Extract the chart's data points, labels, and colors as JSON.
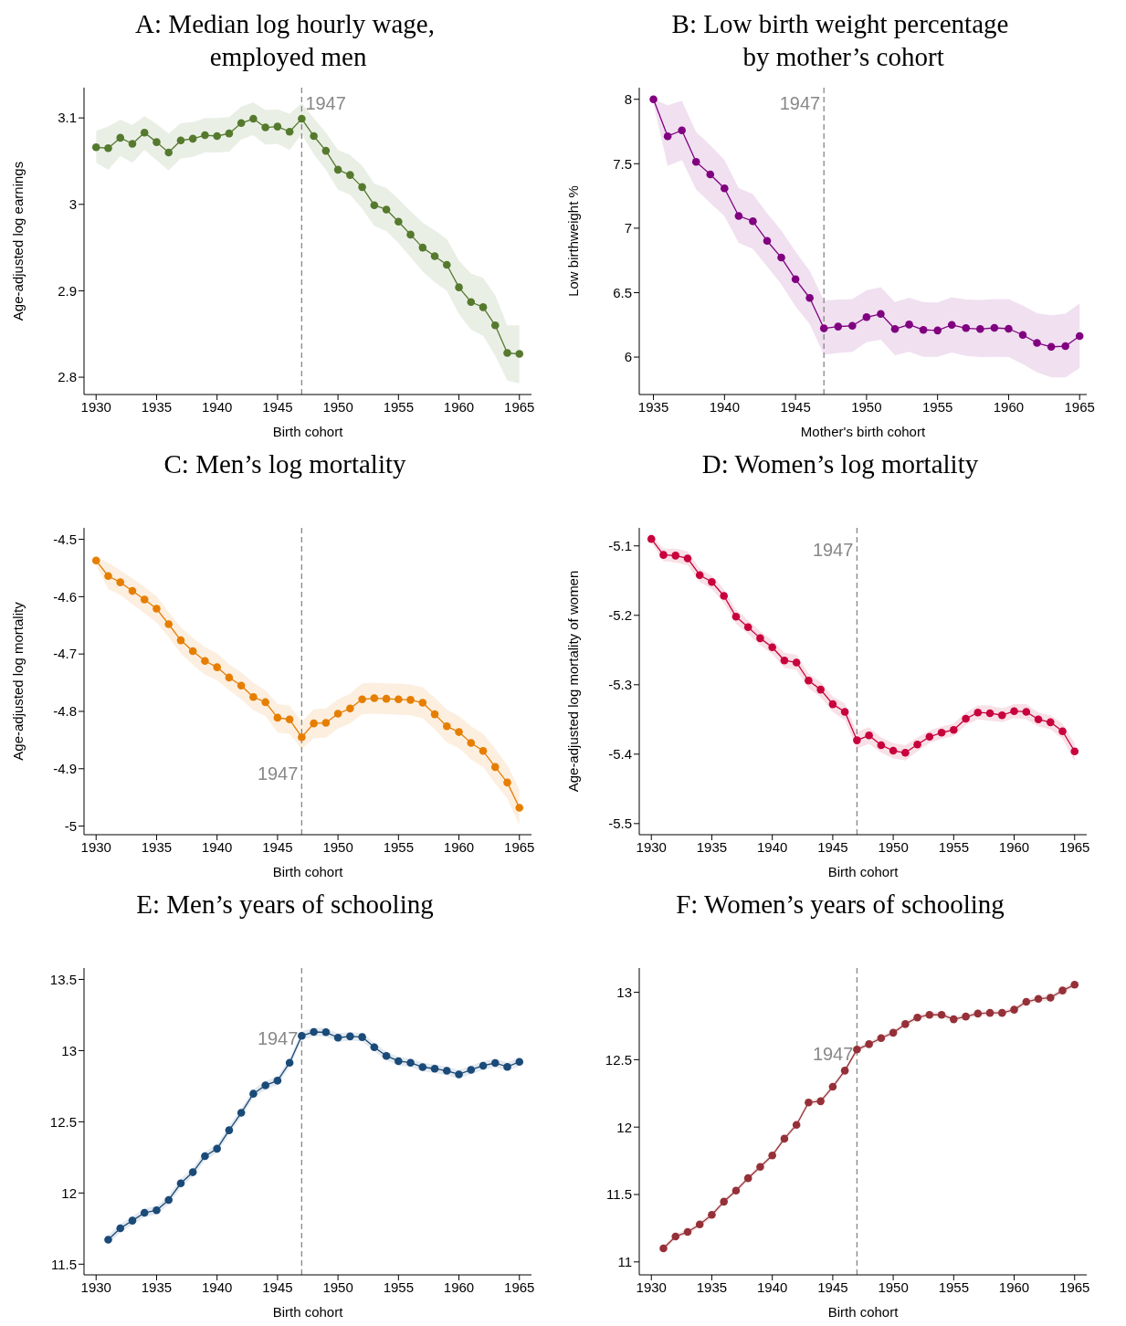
{
  "chart_data": [
    {
      "type": "line",
      "title": "A: Median log hourly wage,\n employed men",
      "xlabel": "Birth cohort",
      "ylabel": "Age-adjusted log earnings",
      "marker": "circle",
      "line_style": "solid",
      "xlim": [
        1929,
        1966
      ],
      "xticks": [
        1930,
        1935,
        1940,
        1945,
        1950,
        1955,
        1960,
        1965
      ],
      "ylim": [
        2.78,
        3.135
      ],
      "yticks": [
        2.8,
        2.9,
        3,
        3.1
      ],
      "ref_lines": [
        {
          "axis": "x",
          "value": 1947,
          "label": "1947",
          "color": "#888888",
          "line_style": "dashed"
        }
      ],
      "x": [
        1930,
        1931,
        1932,
        1933,
        1934,
        1935,
        1936,
        1937,
        1938,
        1939,
        1940,
        1941,
        1942,
        1943,
        1944,
        1945,
        1946,
        1947,
        1948,
        1949,
        1950,
        1951,
        1952,
        1953,
        1954,
        1955,
        1956,
        1957,
        1958,
        1959,
        1960,
        1961,
        1962,
        1963,
        1964,
        1965
      ],
      "series": [
        {
          "color": "#557a2e",
          "values": [
            3.066,
            3.065,
            3.077,
            3.07,
            3.083,
            3.072,
            3.06,
            3.074,
            3.076,
            3.08,
            3.079,
            3.082,
            3.094,
            3.099,
            3.089,
            3.09,
            3.084,
            3.099,
            3.079,
            3.062,
            3.04,
            3.034,
            3.02,
            2.999,
            2.994,
            2.98,
            2.965,
            2.95,
            2.94,
            2.93,
            2.904,
            2.887,
            2.881,
            2.86,
            2.828,
            2.827
          ],
          "upper": [
            3.085,
            3.09,
            3.098,
            3.092,
            3.102,
            3.093,
            3.082,
            3.094,
            3.095,
            3.1,
            3.1,
            3.101,
            3.113,
            3.118,
            3.109,
            3.11,
            3.105,
            3.117,
            3.1,
            3.083,
            3.063,
            3.057,
            3.045,
            3.024,
            3.019,
            3.006,
            2.992,
            2.979,
            2.97,
            2.96,
            2.935,
            2.92,
            2.915,
            2.895,
            2.86,
            2.86
          ],
          "lower": [
            3.048,
            3.04,
            3.056,
            3.048,
            3.063,
            3.051,
            3.039,
            3.053,
            3.055,
            3.06,
            3.06,
            3.061,
            3.075,
            3.08,
            3.069,
            3.07,
            3.063,
            3.081,
            3.058,
            3.04,
            3.017,
            3.011,
            2.995,
            2.975,
            2.969,
            2.955,
            2.939,
            2.922,
            2.91,
            2.9,
            2.873,
            2.855,
            2.848,
            2.825,
            2.796,
            2.793
          ]
        }
      ]
    },
    {
      "type": "line",
      "title": "B: Low birth weight percentage\n by mother’s cohort",
      "xlabel": "Mother's birth cohort",
      "ylabel": "Low birthweight %",
      "marker": "circle",
      "line_style": "solid",
      "xlim": [
        1934,
        1965.5
      ],
      "xticks": [
        1935,
        1940,
        1945,
        1950,
        1955,
        1960,
        1965
      ],
      "ylim": [
        5.71,
        8.09
      ],
      "yticks": [
        6,
        6.5,
        7,
        7.5,
        8
      ],
      "ref_lines": [
        {
          "axis": "x",
          "value": 1947,
          "label": "1947",
          "color": "#888888",
          "line_style": "dashed"
        }
      ],
      "x": [
        1935,
        1936,
        1937,
        1938,
        1939,
        1940,
        1941,
        1942,
        1943,
        1944,
        1945,
        1946,
        1947,
        1948,
        1949,
        1950,
        1951,
        1952,
        1953,
        1954,
        1955,
        1956,
        1957,
        1958,
        1959,
        1960,
        1961,
        1962,
        1963,
        1964,
        1965
      ],
      "series": [
        {
          "color": "#800080",
          "values": [
            8,
            7.713,
            7.759,
            7.515,
            7.417,
            7.309,
            7.095,
            7.054,
            6.902,
            6.772,
            6.604,
            6.459,
            6.223,
            6.237,
            6.243,
            6.31,
            6.335,
            6.218,
            6.253,
            6.211,
            6.207,
            6.25,
            6.225,
            6.218,
            6.227,
            6.22,
            6.172,
            6.11,
            6.08,
            6.085,
            6.163
          ],
          "upper": [
            8,
            7.954,
            7.989,
            7.747,
            7.644,
            7.529,
            7.311,
            7.265,
            7.116,
            6.983,
            6.818,
            6.669,
            6.439,
            6.446,
            6.45,
            6.519,
            6.542,
            6.427,
            6.46,
            6.427,
            6.423,
            6.464,
            6.446,
            6.444,
            6.45,
            6.45,
            6.4,
            6.34,
            6.324,
            6.336,
            6.416
          ],
          "lower": [
            7.966,
            7.483,
            7.529,
            7.3,
            7.196,
            7.093,
            6.886,
            6.84,
            6.703,
            6.565,
            6.393,
            6.255,
            6.018,
            6.032,
            6.041,
            6.115,
            6.135,
            6.014,
            6.041,
            6.002,
            6.002,
            6.036,
            6.009,
            6,
            6.002,
            6,
            5.945,
            5.881,
            5.842,
            5.842,
            5.915
          ]
        }
      ]
    },
    {
      "type": "line",
      "title": "C: Men’s log mortality",
      "xlabel": "Birth cohort",
      "ylabel": "Age-adjusted log mortality",
      "marker": "circle",
      "line_style": "solid",
      "xlim": [
        1929,
        1966
      ],
      "xticks": [
        1930,
        1935,
        1940,
        1945,
        1950,
        1955,
        1960,
        1965
      ],
      "ylim": [
        -5.015,
        -4.48
      ],
      "yticks": [
        -5,
        -4.9,
        -4.8,
        -4.7,
        -4.6,
        -4.5
      ],
      "ref_lines": [
        {
          "axis": "x",
          "value": 1947,
          "label": "1947",
          "color": "#888888",
          "line_style": "dashed"
        }
      ],
      "x": [
        1930,
        1931,
        1932,
        1933,
        1934,
        1935,
        1936,
        1937,
        1938,
        1939,
        1940,
        1941,
        1942,
        1943,
        1944,
        1945,
        1946,
        1947,
        1948,
        1949,
        1950,
        1951,
        1952,
        1953,
        1954,
        1955,
        1956,
        1957,
        1958,
        1959,
        1960,
        1961,
        1962,
        1963,
        1964,
        1965
      ],
      "series": [
        {
          "color": "#e67e00",
          "values": [
            -4.537,
            -4.564,
            -4.575,
            -4.59,
            -4.605,
            -4.621,
            -4.648,
            -4.676,
            -4.695,
            -4.712,
            -4.723,
            -4.741,
            -4.755,
            -4.775,
            -4.784,
            -4.811,
            -4.814,
            -4.845,
            -4.821,
            -4.82,
            -4.804,
            -4.795,
            -4.779,
            -4.777,
            -4.778,
            -4.779,
            -4.78,
            -4.785,
            -4.805,
            -4.826,
            -4.836,
            -4.855,
            -4.869,
            -4.897,
            -4.924,
            -4.968
          ],
          "upper": [
            -4.53,
            -4.541,
            -4.554,
            -4.568,
            -4.583,
            -4.599,
            -4.627,
            -4.653,
            -4.672,
            -4.688,
            -4.699,
            -4.718,
            -4.732,
            -4.75,
            -4.763,
            -4.787,
            -4.79,
            -4.818,
            -4.796,
            -4.795,
            -4.779,
            -4.769,
            -4.751,
            -4.75,
            -4.751,
            -4.752,
            -4.753,
            -4.758,
            -4.776,
            -4.797,
            -4.808,
            -4.826,
            -4.839,
            -4.865,
            -4.894,
            -4.936
          ],
          "lower": [
            -4.545,
            -4.587,
            -4.597,
            -4.613,
            -4.629,
            -4.645,
            -4.671,
            -4.699,
            -4.719,
            -4.736,
            -4.746,
            -4.763,
            -4.779,
            -4.798,
            -4.808,
            -4.837,
            -4.839,
            -4.866,
            -4.847,
            -4.846,
            -4.83,
            -4.821,
            -4.805,
            -4.804,
            -4.805,
            -4.806,
            -4.807,
            -4.812,
            -4.831,
            -4.854,
            -4.864,
            -4.884,
            -4.897,
            -4.926,
            -4.952,
            -4.999
          ]
        }
      ]
    },
    {
      "type": "line",
      "title": "D: Women’s log mortality",
      "xlabel": "Birth cohort",
      "ylabel": "Age-adjusted log mortality of women",
      "marker": "circle",
      "line_style": "solid",
      "xlim": [
        1929,
        1966
      ],
      "xticks": [
        1930,
        1935,
        1940,
        1945,
        1950,
        1955,
        1960,
        1965
      ],
      "ylim": [
        -5.516,
        -5.074
      ],
      "yticks": [
        -5.5,
        -5.4,
        -5.3,
        -5.2,
        -5.1
      ],
      "ref_lines": [
        {
          "axis": "x",
          "value": 1947,
          "label": "1947",
          "color": "#888888",
          "line_style": "dashed"
        }
      ],
      "x": [
        1930,
        1931,
        1932,
        1933,
        1934,
        1935,
        1936,
        1937,
        1938,
        1939,
        1940,
        1941,
        1942,
        1943,
        1944,
        1945,
        1946,
        1947,
        1948,
        1949,
        1950,
        1951,
        1952,
        1953,
        1954,
        1955,
        1956,
        1957,
        1958,
        1959,
        1960,
        1961,
        1962,
        1963,
        1964,
        1965
      ],
      "series": [
        {
          "color": "#c8003c",
          "values": [
            -5.09,
            -5.113,
            -5.114,
            -5.118,
            -5.142,
            -5.152,
            -5.172,
            -5.202,
            -5.217,
            -5.233,
            -5.246,
            -5.265,
            -5.268,
            -5.294,
            -5.307,
            -5.328,
            -5.339,
            -5.38,
            -5.373,
            -5.387,
            -5.395,
            -5.398,
            -5.386,
            -5.375,
            -5.369,
            -5.365,
            -5.349,
            -5.34,
            -5.341,
            -5.344,
            -5.338,
            -5.339,
            -5.35,
            -5.354,
            -5.367,
            -5.396
          ],
          "upper": [
            -5.085,
            -5.104,
            -5.104,
            -5.108,
            -5.133,
            -5.143,
            -5.162,
            -5.192,
            -5.207,
            -5.223,
            -5.236,
            -5.254,
            -5.257,
            -5.284,
            -5.296,
            -5.317,
            -5.327,
            -5.368,
            -5.361,
            -5.376,
            -5.384,
            -5.387,
            -5.376,
            -5.366,
            -5.36,
            -5.356,
            -5.34,
            -5.33,
            -5.33,
            -5.334,
            -5.328,
            -5.328,
            -5.34,
            -5.344,
            -5.356,
            -5.384
          ],
          "lower": [
            -5.095,
            -5.122,
            -5.124,
            -5.128,
            -5.152,
            -5.162,
            -5.182,
            -5.212,
            -5.227,
            -5.243,
            -5.256,
            -5.276,
            -5.279,
            -5.305,
            -5.318,
            -5.339,
            -5.351,
            -5.392,
            -5.385,
            -5.398,
            -5.406,
            -5.409,
            -5.396,
            -5.384,
            -5.378,
            -5.374,
            -5.358,
            -5.35,
            -5.352,
            -5.354,
            -5.348,
            -5.35,
            -5.36,
            -5.364,
            -5.378,
            -5.41
          ]
        }
      ]
    },
    {
      "type": "line",
      "title": "E: Men’s years of schooling",
      "xlabel": "Birth cohort",
      "marker": "circle",
      "line_style": "solid",
      "xlim": [
        1929,
        1966
      ],
      "xticks": [
        1930,
        1935,
        1940,
        1945,
        1950,
        1955,
        1960,
        1965
      ],
      "ylim": [
        11.425,
        13.58
      ],
      "yticks": [
        11.5,
        12,
        12.5,
        13,
        13.5
      ],
      "ref_lines": [
        {
          "axis": "x",
          "value": 1947,
          "label": "1947",
          "color": "#888888",
          "line_style": "dashed"
        }
      ],
      "x": [
        1931,
        1932,
        1933,
        1934,
        1935,
        1936,
        1937,
        1938,
        1939,
        1940,
        1941,
        1942,
        1943,
        1944,
        1945,
        1946,
        1947,
        1948,
        1949,
        1950,
        1951,
        1952,
        1953,
        1954,
        1955,
        1956,
        1957,
        1958,
        1959,
        1960,
        1961,
        1962,
        1963,
        1964,
        1965
      ],
      "series": [
        {
          "color": "#1a4a78",
          "values": [
            11.672,
            11.752,
            11.806,
            11.861,
            11.879,
            11.951,
            12.068,
            12.146,
            12.259,
            12.311,
            12.441,
            12.563,
            12.697,
            12.756,
            12.789,
            12.915,
            13.104,
            13.131,
            13.129,
            13.091,
            13.1,
            13.095,
            13.024,
            12.963,
            12.926,
            12.915,
            12.884,
            12.873,
            12.858,
            12.833,
            12.865,
            12.894,
            12.913,
            12.886,
            12.921
          ],
          "upper": [
            11.702,
            11.782,
            11.836,
            11.891,
            11.909,
            11.981,
            12.098,
            12.176,
            12.289,
            12.341,
            12.471,
            12.593,
            12.727,
            12.786,
            12.819,
            12.945,
            13.134,
            13.161,
            13.159,
            13.121,
            13.13,
            13.125,
            13.054,
            12.993,
            12.956,
            12.945,
            12.914,
            12.903,
            12.888,
            12.863,
            12.895,
            12.924,
            12.943,
            12.916,
            12.951
          ],
          "lower": [
            11.642,
            11.722,
            11.776,
            11.831,
            11.849,
            11.921,
            12.038,
            12.116,
            12.229,
            12.281,
            12.411,
            12.533,
            12.667,
            12.726,
            12.759,
            12.885,
            13.074,
            13.101,
            13.099,
            13.061,
            13.07,
            13.065,
            12.994,
            12.933,
            12.896,
            12.885,
            12.854,
            12.843,
            12.828,
            12.803,
            12.835,
            12.864,
            12.883,
            12.856,
            12.891
          ]
        }
      ]
    },
    {
      "type": "line",
      "title": "F: Women’s years of schooling",
      "xlabel": "Birth cohort",
      "marker": "circle",
      "line_style": "solid",
      "xlim": [
        1929,
        1966
      ],
      "xticks": [
        1930,
        1935,
        1940,
        1945,
        1950,
        1955,
        1960,
        1965
      ],
      "ylim": [
        10.904,
        13.18
      ],
      "yticks": [
        11,
        11.5,
        12,
        12.5,
        13
      ],
      "ref_lines": [
        {
          "axis": "x",
          "value": 1947,
          "label": "1947",
          "color": "#888888",
          "line_style": "dashed"
        }
      ],
      "x": [
        1931,
        1932,
        1933,
        1934,
        1935,
        1936,
        1937,
        1938,
        1939,
        1940,
        1941,
        1942,
        1943,
        1944,
        1945,
        1946,
        1947,
        1948,
        1949,
        1950,
        1951,
        1952,
        1953,
        1954,
        1955,
        1956,
        1957,
        1958,
        1959,
        1960,
        1961,
        1962,
        1963,
        1964,
        1965
      ],
      "series": [
        {
          "color": "#963038",
          "values": [
            11.1,
            11.189,
            11.222,
            11.278,
            11.349,
            11.447,
            11.529,
            11.621,
            11.705,
            11.79,
            11.914,
            12.017,
            12.183,
            12.192,
            12.299,
            12.419,
            12.575,
            12.615,
            12.66,
            12.7,
            12.764,
            12.813,
            12.833,
            12.833,
            12.8,
            12.82,
            12.842,
            12.847,
            12.847,
            12.871,
            12.929,
            12.951,
            12.96,
            13.013,
            13.056
          ],
          "upper": [
            11.12,
            11.209,
            11.242,
            11.298,
            11.369,
            11.467,
            11.549,
            11.641,
            11.725,
            11.81,
            11.934,
            12.037,
            12.203,
            12.212,
            12.319,
            12.439,
            12.595,
            12.635,
            12.68,
            12.72,
            12.784,
            12.833,
            12.853,
            12.853,
            12.82,
            12.84,
            12.862,
            12.867,
            12.867,
            12.891,
            12.949,
            12.971,
            12.98,
            13.033,
            13.076
          ],
          "lower": [
            11.08,
            11.169,
            11.202,
            11.258,
            11.329,
            11.427,
            11.509,
            11.601,
            11.685,
            11.77,
            11.894,
            11.997,
            12.163,
            12.172,
            12.279,
            12.399,
            12.555,
            12.595,
            12.64,
            12.68,
            12.744,
            12.793,
            12.813,
            12.813,
            12.78,
            12.8,
            12.822,
            12.827,
            12.827,
            12.851,
            12.909,
            12.931,
            12.94,
            12.993,
            13.036
          ]
        }
      ]
    }
  ]
}
